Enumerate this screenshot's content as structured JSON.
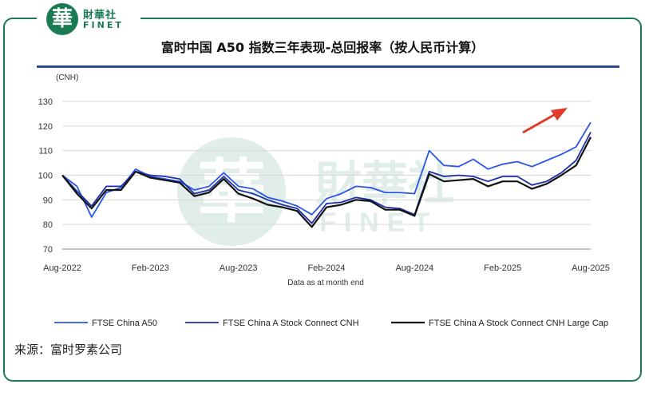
{
  "brand": {
    "seal_char": "華",
    "name_cn": "財華社",
    "name_en": "FINET",
    "color": "#1a7a52"
  },
  "chart_data": {
    "type": "line",
    "title": "富时中国 A50 指数三年表现-总回报率（按人民币计算）",
    "ylabel": "(CNH)",
    "xlabel": "Data as at month end",
    "ylim": [
      70,
      130
    ],
    "yticks": [
      70,
      80,
      90,
      100,
      110,
      120,
      130
    ],
    "grid": true,
    "legend_position": "bottom",
    "x_tick_labels": [
      "Aug-2022",
      "Feb-2023",
      "Aug-2023",
      "Feb-2024",
      "Aug-2024",
      "Feb-2025",
      "Aug-2025"
    ],
    "categories": [
      "Aug-2022",
      "Sep-2022",
      "Oct-2022",
      "Nov-2022",
      "Dec-2022",
      "Jan-2023",
      "Feb-2023",
      "Mar-2023",
      "Apr-2023",
      "May-2023",
      "Jun-2023",
      "Jul-2023",
      "Aug-2023",
      "Sep-2023",
      "Oct-2023",
      "Nov-2023",
      "Dec-2023",
      "Jan-2024",
      "Feb-2024",
      "Mar-2024",
      "Apr-2024",
      "May-2024",
      "Jun-2024",
      "Jul-2024",
      "Aug-2024",
      "Sep-2024",
      "Oct-2024",
      "Nov-2024",
      "Dec-2024",
      "Jan-2025",
      "Feb-2025",
      "Mar-2025",
      "Apr-2025",
      "May-2025",
      "Jun-2025",
      "Jul-2025",
      "Aug-2025"
    ],
    "series": [
      {
        "name": "FTSE China A50",
        "color": "#2a55e6",
        "width": 1.8,
        "values": [
          100,
          95.5,
          83,
          93,
          95,
          102.5,
          99.5,
          98.5,
          97.5,
          94,
          95.5,
          101,
          95.5,
          94.5,
          91,
          89.5,
          87.5,
          84,
          90.5,
          92.5,
          95.5,
          95,
          93,
          93,
          92.5,
          110,
          104,
          103.5,
          106.5,
          102.5,
          104.5,
          105.5,
          103.5,
          106,
          108.5,
          111.5,
          121.5
        ]
      },
      {
        "name": "FTSE China A Stock Connect CNH",
        "color": "#1c2fa8",
        "width": 1.8,
        "values": [
          100,
          93.5,
          87.5,
          95.5,
          95.5,
          101.5,
          100,
          99.5,
          98.5,
          92.5,
          94,
          99.5,
          94,
          92.5,
          90,
          88,
          86.5,
          80.5,
          88.5,
          89,
          91,
          90,
          87,
          86.5,
          84,
          101.5,
          99.5,
          100,
          99.5,
          97.5,
          99.5,
          99.5,
          96,
          97.5,
          101,
          106,
          117.5
        ]
      },
      {
        "name": "FTSE China A Stock Connect CNH Large Cap",
        "color": "#111111",
        "width": 2.2,
        "values": [
          100,
          92.5,
          86.5,
          94,
          94,
          101.5,
          99,
          98,
          97,
          91.5,
          93,
          98.5,
          92.5,
          90.5,
          88,
          87,
          85.5,
          79,
          87,
          88,
          90,
          89.5,
          86,
          86,
          83.5,
          100.5,
          97.5,
          98,
          98.5,
          95.5,
          97.5,
          97.5,
          94.5,
          96.5,
          100,
          104,
          115.5
        ]
      }
    ]
  },
  "source": "来源：富时罗素公司",
  "annotation": {
    "type": "arrow",
    "color": "#e03a2a"
  }
}
